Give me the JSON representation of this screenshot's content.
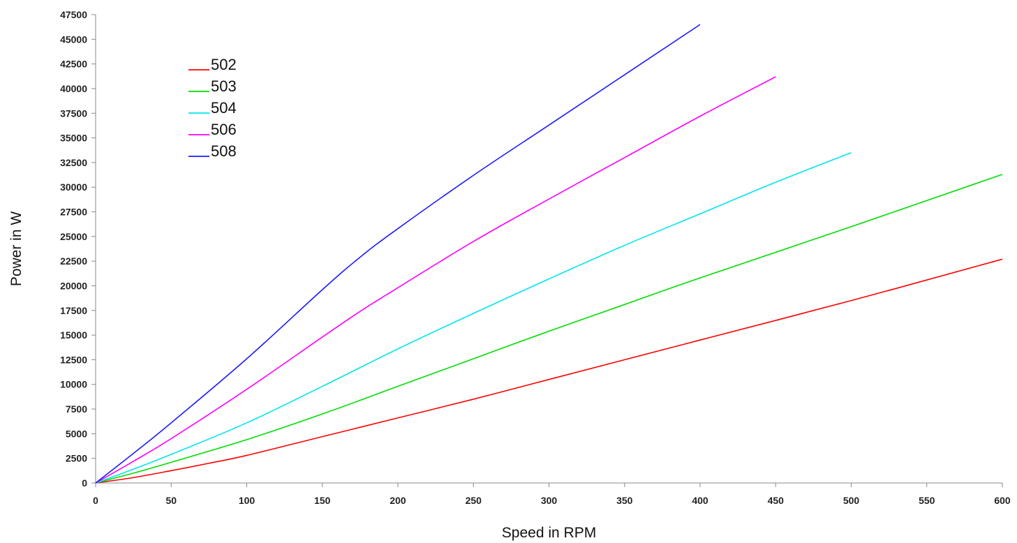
{
  "chart_data": {
    "type": "line",
    "title": "",
    "xlabel": "Speed in RPM",
    "ylabel": "Power in W",
    "xlim": [
      0,
      600
    ],
    "ylim": [
      0,
      47500
    ],
    "xticks": [
      0,
      50,
      100,
      150,
      200,
      250,
      300,
      350,
      400,
      450,
      500,
      550,
      600
    ],
    "yticks": [
      0,
      2500,
      5000,
      7500,
      10000,
      12500,
      15000,
      17500,
      20000,
      22500,
      25000,
      27500,
      30000,
      32500,
      35000,
      37500,
      40000,
      42500,
      45000,
      47500
    ],
    "grid": false,
    "legend_position": "top-left",
    "series": [
      {
        "name": "502",
        "color": "#ff0000",
        "x": [
          0,
          25,
          50,
          75,
          100,
          150,
          200,
          250,
          300,
          400,
          500,
          600
        ],
        "y": [
          0,
          550,
          1250,
          2000,
          2800,
          4700,
          6600,
          8500,
          10500,
          14500,
          18500,
          22700
        ]
      },
      {
        "name": "503",
        "color": "#00dd00",
        "x": [
          0,
          25,
          50,
          100,
          150,
          200,
          250,
          300,
          350,
          400,
          500,
          600
        ],
        "y": [
          0,
          1000,
          2100,
          4400,
          7000,
          9800,
          12600,
          15400,
          18100,
          20800,
          26000,
          31300
        ]
      },
      {
        "name": "504",
        "color": "#00e5ee",
        "x": [
          0,
          25,
          50,
          100,
          150,
          200,
          250,
          300,
          350,
          400,
          450,
          500
        ],
        "y": [
          0,
          1400,
          2900,
          6100,
          9800,
          13600,
          17200,
          20700,
          24100,
          27300,
          30500,
          33500
        ]
      },
      {
        "name": "506",
        "color": "#ff00ff",
        "x": [
          0,
          25,
          50,
          100,
          150,
          175,
          200,
          250,
          300,
          350,
          400,
          450
        ],
        "y": [
          0,
          2200,
          4500,
          9500,
          14800,
          17400,
          19800,
          24500,
          28800,
          33000,
          37200,
          41200
        ]
      },
      {
        "name": "508",
        "color": "#1a1aff",
        "x": [
          0,
          25,
          50,
          100,
          150,
          175,
          200,
          250,
          300,
          350,
          400
        ],
        "y": [
          0,
          3000,
          6100,
          12600,
          19600,
          22900,
          25800,
          31200,
          36300,
          41400,
          46500
        ]
      }
    ]
  }
}
